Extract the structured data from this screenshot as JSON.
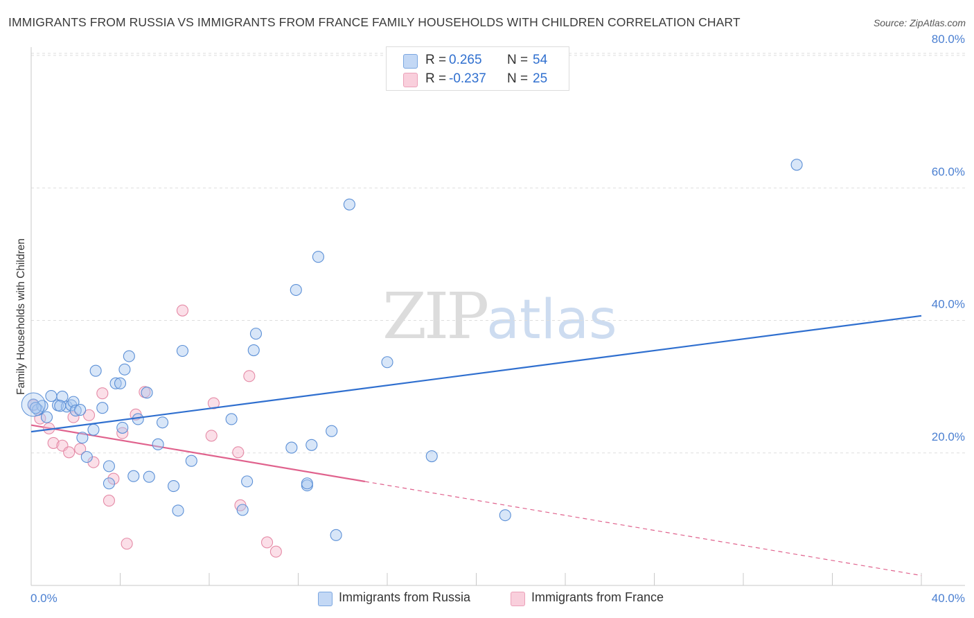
{
  "header": {
    "title": "IMMIGRANTS FROM RUSSIA VS IMMIGRANTS FROM FRANCE FAMILY HOUSEHOLDS WITH CHILDREN CORRELATION CHART",
    "source": "Source: ZipAtlas.com"
  },
  "watermark": {
    "zip": "ZIP",
    "atlas": "atlas"
  },
  "legend": {
    "russia": {
      "r_label": "R =",
      "r_value": "0.265",
      "n_label": "N =",
      "n_value": "54"
    },
    "france": {
      "r_label": "R =",
      "r_value": "-0.237",
      "n_label": "N =",
      "n_value": "25"
    }
  },
  "colors": {
    "russia_fill": "#a9c8f0",
    "russia_stroke": "#5b8fd6",
    "russia_line": "#2f6fcf",
    "france_fill": "#f6b8cb",
    "france_stroke": "#e58aa6",
    "france_line": "#e0628d",
    "grid": "#dddddd",
    "tick_label": "#4a7fd1"
  },
  "chart_data": {
    "type": "scatter",
    "title": "IMMIGRANTS FROM RUSSIA VS IMMIGRANTS FROM FRANCE FAMILY HOUSEHOLDS WITH CHILDREN CORRELATION CHART",
    "xlabel": "",
    "ylabel": "Family Households with Children",
    "xlim": [
      0,
      40
    ],
    "ylim": [
      0,
      80
    ],
    "x_tick_labels": [
      "0.0%",
      "40.0%"
    ],
    "y_ticks": [
      20,
      40,
      60,
      80
    ],
    "y_tick_labels": [
      "20.0%",
      "40.0%",
      "60.0%",
      "80.0%"
    ],
    "grid": true,
    "series": [
      {
        "name": "Immigrants from Russia",
        "r": 0.265,
        "n": 54,
        "trend": {
          "x": [
            0,
            40
          ],
          "y": [
            23.2,
            40.7
          ]
        },
        "points": [
          [
            0.1,
            27.3
          ],
          [
            0.3,
            26.5
          ],
          [
            0.5,
            27.1
          ],
          [
            0.7,
            25.4
          ],
          [
            0.9,
            28.6
          ],
          [
            1.2,
            27.2
          ],
          [
            1.4,
            28.5
          ],
          [
            1.6,
            27.0
          ],
          [
            1.8,
            27.2
          ],
          [
            1.9,
            27.7
          ],
          [
            2.0,
            26.4
          ],
          [
            2.2,
            26.5
          ],
          [
            2.3,
            22.3
          ],
          [
            2.5,
            19.4
          ],
          [
            2.8,
            23.5
          ],
          [
            2.9,
            32.4
          ],
          [
            3.2,
            26.8
          ],
          [
            3.5,
            15.4
          ],
          [
            3.5,
            18.0
          ],
          [
            3.8,
            30.5
          ],
          [
            4.0,
            30.5
          ],
          [
            4.1,
            23.8
          ],
          [
            4.2,
            32.6
          ],
          [
            4.4,
            34.6
          ],
          [
            4.6,
            16.5
          ],
          [
            4.8,
            25.1
          ],
          [
            5.2,
            29.1
          ],
          [
            5.3,
            16.4
          ],
          [
            5.7,
            21.3
          ],
          [
            5.9,
            24.6
          ],
          [
            6.4,
            15.0
          ],
          [
            6.6,
            11.3
          ],
          [
            6.8,
            35.4
          ],
          [
            7.2,
            18.8
          ],
          [
            9.0,
            25.1
          ],
          [
            9.5,
            11.4
          ],
          [
            9.7,
            15.7
          ],
          [
            10.0,
            35.5
          ],
          [
            10.1,
            38.0
          ],
          [
            11.7,
            20.8
          ],
          [
            11.9,
            44.6
          ],
          [
            12.4,
            15.1
          ],
          [
            12.4,
            15.4
          ],
          [
            12.6,
            21.2
          ],
          [
            12.9,
            49.6
          ],
          [
            13.5,
            23.3
          ],
          [
            13.7,
            7.6
          ],
          [
            14.3,
            57.5
          ],
          [
            16.0,
            33.7
          ],
          [
            18.0,
            19.5
          ],
          [
            21.3,
            10.6
          ],
          [
            34.4,
            63.5
          ],
          [
            0.2,
            26.8
          ],
          [
            1.3,
            27.1
          ]
        ]
      },
      {
        "name": "Immigrants from France",
        "r": -0.237,
        "n": 25,
        "trend": {
          "x": [
            0,
            40
          ],
          "y": [
            24.2,
            1.5
          ],
          "solid_until_x": 15
        },
        "points": [
          [
            0.1,
            27.2
          ],
          [
            0.4,
            25.2
          ],
          [
            0.8,
            23.7
          ],
          [
            1.0,
            21.5
          ],
          [
            1.4,
            21.1
          ],
          [
            1.7,
            20.1
          ],
          [
            1.9,
            25.4
          ],
          [
            2.2,
            20.6
          ],
          [
            2.6,
            25.7
          ],
          [
            2.8,
            18.6
          ],
          [
            3.2,
            29.0
          ],
          [
            3.5,
            12.8
          ],
          [
            3.7,
            16.1
          ],
          [
            4.1,
            23.0
          ],
          [
            4.3,
            6.3
          ],
          [
            4.7,
            25.8
          ],
          [
            5.1,
            29.2
          ],
          [
            6.8,
            41.5
          ],
          [
            8.2,
            27.5
          ],
          [
            8.1,
            22.6
          ],
          [
            9.3,
            20.1
          ],
          [
            9.4,
            12.1
          ],
          [
            9.8,
            31.6
          ],
          [
            10.6,
            6.5
          ],
          [
            11.0,
            5.1
          ]
        ]
      }
    ]
  },
  "bottom_legend": {
    "russia_label": "Immigrants from Russia",
    "france_label": "Immigrants from France"
  }
}
